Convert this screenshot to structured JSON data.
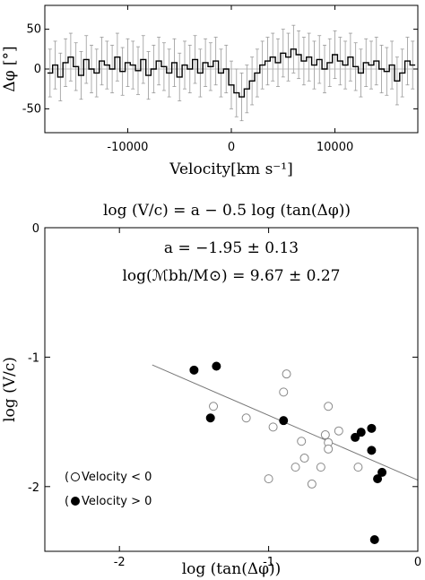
{
  "chart_data": [
    {
      "type": "line",
      "drawstyle": "steps-mid",
      "xlabel": "Velocity[km s⁻¹]",
      "ylabel": "Δφ [°]",
      "xlim": [
        -18000,
        18000
      ],
      "ylim": [
        -80,
        80
      ],
      "xticks": [
        -10000,
        0,
        10000
      ],
      "xtick_labels": [
        "-10000",
        "0",
        "10000"
      ],
      "yticks": [
        -50,
        0,
        50
      ],
      "ytick_labels": [
        "-50",
        "0",
        "50"
      ],
      "reference_line": 0,
      "error_bar_halfwidth": 30,
      "series": [
        {
          "x": [
            -17500,
            -17000,
            -16500,
            -16000,
            -15500,
            -15000,
            -14500,
            -14000,
            -13500,
            -13000,
            -12500,
            -12000,
            -11500,
            -11000,
            -10500,
            -10000,
            -9500,
            -9000,
            -8500,
            -8000,
            -7500,
            -7000,
            -6500,
            -6000,
            -5500,
            -5000,
            -4500,
            -4000,
            -3500,
            -3000,
            -2500,
            -2000,
            -1500,
            -1000,
            -500,
            0,
            500,
            1000,
            1500,
            2000,
            2500,
            3000,
            3500,
            4000,
            4500,
            5000,
            5500,
            6000,
            6500,
            7000,
            7500,
            8000,
            8500,
            9000,
            9500,
            10000,
            10500,
            11000,
            11500,
            12000,
            12500,
            13000,
            13500,
            14000,
            14500,
            15000,
            15500,
            16000,
            16500,
            17000,
            17500
          ],
          "y": [
            -5,
            5,
            -10,
            8,
            15,
            3,
            -8,
            12,
            0,
            -5,
            10,
            5,
            0,
            15,
            -3,
            8,
            5,
            -2,
            12,
            -8,
            0,
            10,
            3,
            -5,
            8,
            -10,
            5,
            0,
            12,
            -5,
            8,
            3,
            10,
            -5,
            0,
            -20,
            -30,
            -35,
            -25,
            -15,
            -5,
            5,
            10,
            15,
            8,
            20,
            15,
            25,
            18,
            10,
            15,
            5,
            12,
            0,
            8,
            18,
            10,
            5,
            15,
            3,
            -5,
            8,
            5,
            10,
            0,
            -3,
            5,
            -15,
            -5,
            10,
            5
          ]
        }
      ]
    },
    {
      "type": "scatter",
      "title": "log (V/c) = a − 0.5 log (tan(Δφ))",
      "annotations": [
        "a = −1.95 ± 0.13",
        "log(ℳbh/M⊙) = 9.67 ± 0.27"
      ],
      "xlabel": "log (tan(Δφ))",
      "ylabel": "log (V/c)",
      "xlim": [
        -2.5,
        0
      ],
      "ylim": [
        -2.5,
        0
      ],
      "xticks": [
        -2,
        -1,
        0
      ],
      "xtick_labels": [
        "-2",
        "-1",
        "0"
      ],
      "yticks": [
        -2,
        -1,
        0
      ],
      "ytick_labels": [
        "-2",
        "-1",
        "0"
      ],
      "fit_line": {
        "slope": -0.5,
        "intercept": -1.95,
        "x_range": [
          -1.78,
          0
        ]
      },
      "series": [
        {
          "name": "Velocity < 0",
          "marker": "open-circle",
          "points": [
            [
              -1.37,
              -1.38
            ],
            [
              -1.15,
              -1.47
            ],
            [
              -0.97,
              -1.54
            ],
            [
              -0.9,
              -1.27
            ],
            [
              -0.88,
              -1.13
            ],
            [
              -0.6,
              -1.38
            ],
            [
              -0.53,
              -1.57
            ],
            [
              -0.62,
              -1.6
            ],
            [
              -0.78,
              -1.65
            ],
            [
              -0.6,
              -1.66
            ],
            [
              -0.6,
              -1.71
            ],
            [
              -0.76,
              -1.78
            ],
            [
              -0.82,
              -1.85
            ],
            [
              -0.65,
              -1.85
            ],
            [
              -0.4,
              -1.85
            ],
            [
              -0.71,
              -1.98
            ],
            [
              -1.0,
              -1.94
            ]
          ]
        },
        {
          "name": "Velocity > 0",
          "marker": "filled-circle",
          "points": [
            [
              -1.5,
              -1.1
            ],
            [
              -1.35,
              -1.07
            ],
            [
              -1.39,
              -1.47
            ],
            [
              -0.9,
              -1.49
            ],
            [
              -0.42,
              -1.62
            ],
            [
              -0.38,
              -1.58
            ],
            [
              -0.31,
              -1.55
            ],
            [
              -0.31,
              -1.72
            ],
            [
              -0.24,
              -1.89
            ],
            [
              -0.27,
              -1.94
            ],
            [
              -0.29,
              -2.41
            ]
          ]
        }
      ]
    }
  ]
}
